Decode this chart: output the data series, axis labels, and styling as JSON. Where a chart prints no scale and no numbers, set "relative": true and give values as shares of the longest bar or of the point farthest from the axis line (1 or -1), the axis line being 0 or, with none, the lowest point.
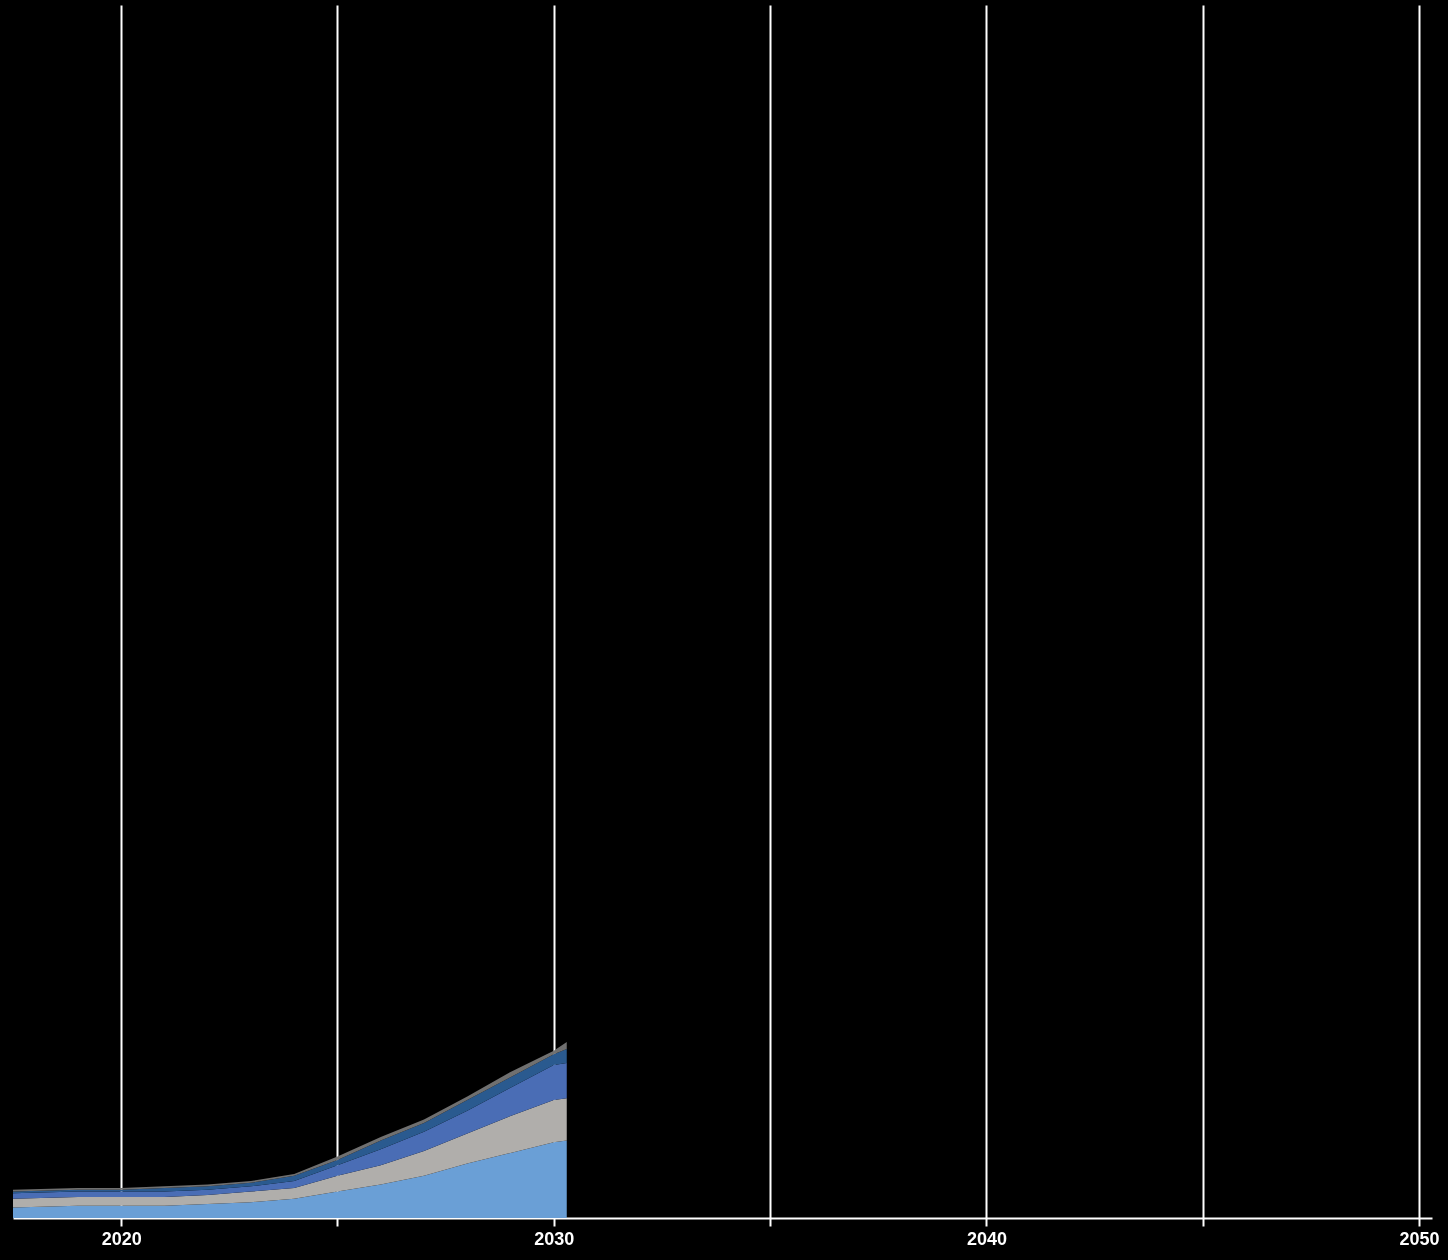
{
  "chart_data": {
    "type": "area",
    "relative": true,
    "stacked": true,
    "grid": "x",
    "x": [
      2017.5,
      2019,
      2020,
      2021,
      2022,
      2023,
      2024,
      2025,
      2026,
      2027,
      2028,
      2029,
      2030,
      2030.3
    ],
    "xlim": [
      2017.5,
      2050.3
    ],
    "xticks": [
      2020,
      {
        "value": 2025,
        "label": null
      },
      2030,
      {
        "value": 2035,
        "label": null
      },
      2040,
      {
        "value": 2045,
        "label": null
      },
      2050
    ],
    "series": [
      {
        "color": "#6a9fd6",
        "values": [
          0.06,
          0.07,
          0.07,
          0.07,
          0.08,
          0.09,
          0.11,
          0.15,
          0.19,
          0.24,
          0.31,
          0.37,
          0.43,
          0.44
        ]
      },
      {
        "color": "#b0aeab",
        "values": [
          0.05,
          0.05,
          0.05,
          0.05,
          0.05,
          0.06,
          0.06,
          0.09,
          0.11,
          0.14,
          0.17,
          0.21,
          0.24,
          0.24
        ]
      },
      {
        "color": "#4a6db5",
        "values": [
          0.03,
          0.03,
          0.03,
          0.03,
          0.03,
          0.03,
          0.04,
          0.06,
          0.09,
          0.11,
          0.13,
          0.16,
          0.2,
          0.2
        ]
      },
      {
        "color": "#2a5a8f",
        "values": [
          0.01,
          0.01,
          0.01,
          0.02,
          0.02,
          0.02,
          0.03,
          0.03,
          0.05,
          0.05,
          0.06,
          0.06,
          0.06,
          0.08
        ]
      },
      {
        "color": "#707070",
        "values": [
          0.01,
          0.01,
          0.01,
          0.01,
          0.01,
          0.01,
          0.01,
          0.02,
          0.02,
          0.02,
          0.02,
          0.03,
          0.02,
          0.04
        ]
      }
    ]
  }
}
